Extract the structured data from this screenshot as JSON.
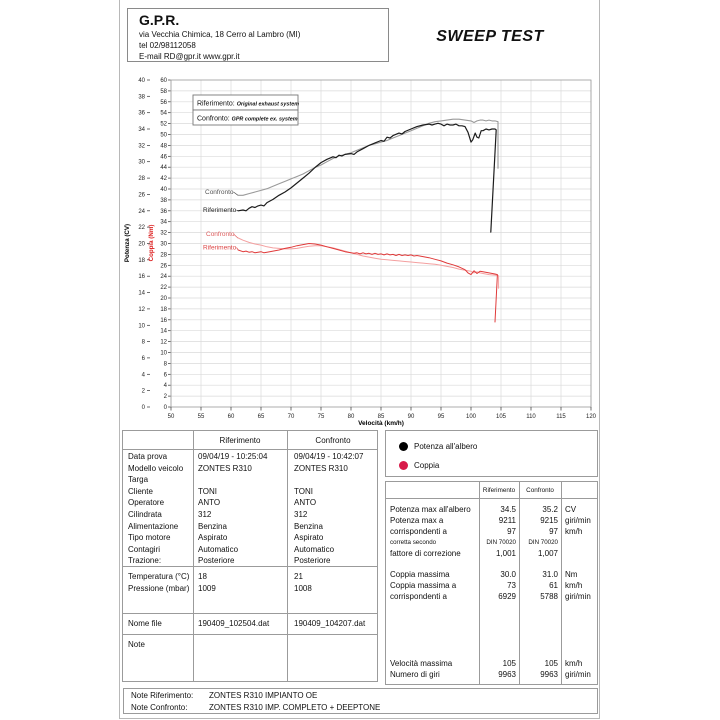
{
  "header": {
    "company": "G.P.R.",
    "address": "via Vecchia Chimica, 18 Cerro al Lambro (MI)",
    "phone": "tel 02/98112058",
    "email_line": "E-mail RD@gpr.it  www.gpr.it",
    "title": "SWEEP TEST"
  },
  "chart_data": {
    "type": "line",
    "x_axis": {
      "label": "Velocità (km/h)",
      "min": 50,
      "max": 120,
      "step": 5
    },
    "y_axis_power": {
      "label": "Potenza (CV)",
      "min": 0,
      "max": 40,
      "step": 2,
      "color": "#000000"
    },
    "y_axis_torque": {
      "label": "Coppia (Nm)",
      "min": 0,
      "max": 60,
      "step": 2,
      "color": "#dd2222"
    },
    "grid": "on",
    "box_legend": [
      {
        "prefix": "Riferimento:",
        "text": "Original exhaust system"
      },
      {
        "prefix": "Confronto:",
        "text": "GPR complete ex. system"
      }
    ],
    "curve_labels": [
      {
        "text": "Confronto",
        "color": "#555555",
        "x": 85,
        "y": 126,
        "line": [
          113.5,
          124,
          118,
          127.3
        ]
      },
      {
        "text": "Riferimento",
        "color": "#222222",
        "x": 83,
        "y": 144,
        "line": [
          116.5,
          142,
          118.2,
          142.9
        ]
      },
      {
        "text": "Confronto",
        "color": "#e06060",
        "x": 86,
        "y": 168,
        "line": [
          113.5,
          166,
          118,
          170.1
        ]
      },
      {
        "text": "Riferimento",
        "color": "#dd4444",
        "x": 83,
        "y": 181.5,
        "line": [
          116.5,
          179.5,
          118.2,
          182.1
        ]
      }
    ],
    "series": [
      {
        "id": "potenza-confronto",
        "name": "Potenza Confronto",
        "axis": "power",
        "color": "#9a9a9a",
        "width": 1.1,
        "points": [
          [
            61.2,
            25.9
          ],
          [
            62,
            25.9
          ],
          [
            63,
            26.1
          ],
          [
            64,
            26.3
          ],
          [
            65,
            26.5
          ],
          [
            66,
            26.7
          ],
          [
            67,
            27.0
          ],
          [
            68,
            27.3
          ],
          [
            69,
            27.6
          ],
          [
            70,
            27.9
          ],
          [
            71,
            28.2
          ],
          [
            72,
            28.5
          ],
          [
            73,
            28.9
          ],
          [
            74,
            29.3
          ],
          [
            75,
            29.6
          ],
          [
            76,
            30.0
          ],
          [
            77,
            30.4
          ],
          [
            78,
            30.7
          ],
          [
            79,
            30.9
          ],
          [
            80,
            31.1
          ],
          [
            81,
            31.4
          ],
          [
            82,
            31.7
          ],
          [
            83,
            32.0
          ],
          [
            84,
            32.2
          ],
          [
            85,
            32.4
          ],
          [
            86,
            32.6
          ],
          [
            87,
            32.9
          ],
          [
            88,
            33.2
          ],
          [
            89,
            33.5
          ],
          [
            90,
            33.8
          ],
          [
            91,
            34.1
          ],
          [
            92,
            34.4
          ],
          [
            93,
            34.7
          ],
          [
            94,
            34.9
          ],
          [
            95,
            35.0
          ],
          [
            96,
            35.1
          ],
          [
            97,
            35.2
          ],
          [
            98,
            35.2
          ],
          [
            99,
            35.1
          ],
          [
            100,
            35.0
          ],
          [
            100.5,
            34.8
          ],
          [
            101,
            35.0
          ],
          [
            101.5,
            35.1
          ],
          [
            102,
            35.1
          ],
          [
            102.5,
            35.0
          ],
          [
            103,
            35.1
          ],
          [
            103.5,
            35.0
          ],
          [
            104,
            35.0
          ],
          [
            104.5,
            34.9
          ],
          [
            104.5,
            29.2
          ]
        ]
      },
      {
        "id": "potenza-riferimento",
        "name": "Potenza Riferimento",
        "axis": "power",
        "color": "#1c1c1c",
        "width": 1.2,
        "points": [
          [
            61.2,
            24.0
          ],
          [
            62,
            24.1
          ],
          [
            62.5,
            24.0
          ],
          [
            63,
            24.3
          ],
          [
            63.5,
            24.5
          ],
          [
            64,
            24.4
          ],
          [
            64.5,
            24.6
          ],
          [
            65,
            24.7
          ],
          [
            65.5,
            24.6
          ],
          [
            66,
            25.0
          ],
          [
            67,
            25.4
          ],
          [
            68,
            25.9
          ],
          [
            69,
            26.3
          ],
          [
            70,
            26.8
          ],
          [
            71,
            27.4
          ],
          [
            72,
            28.0
          ],
          [
            73,
            28.6
          ],
          [
            74,
            29.3
          ],
          [
            75,
            29.9
          ],
          [
            76,
            30.3
          ],
          [
            77,
            30.6
          ],
          [
            77.5,
            30.5
          ],
          [
            78,
            30.8
          ],
          [
            78.5,
            30.7
          ],
          [
            79,
            30.9
          ],
          [
            80,
            31.0
          ],
          [
            80.5,
            30.9
          ],
          [
            81,
            31.2
          ],
          [
            82,
            31.6
          ],
          [
            83,
            32.0
          ],
          [
            84,
            32.3
          ],
          [
            85,
            32.6
          ],
          [
            85.5,
            32.5
          ],
          [
            86,
            33.0
          ],
          [
            86.5,
            32.9
          ],
          [
            87,
            33.2
          ],
          [
            88,
            33.5
          ],
          [
            88.5,
            33.4
          ],
          [
            89,
            33.7
          ],
          [
            90,
            34.0
          ],
          [
            91,
            34.3
          ],
          [
            92,
            34.5
          ],
          [
            93,
            34.6
          ],
          [
            93.5,
            34.5
          ],
          [
            94,
            34.6
          ],
          [
            94.5,
            34.7
          ],
          [
            95,
            34.6
          ],
          [
            95.5,
            34.4
          ],
          [
            96,
            34.6
          ],
          [
            96.5,
            34.5
          ],
          [
            97,
            34.5
          ],
          [
            97.5,
            34.6
          ],
          [
            98,
            34.4
          ],
          [
            98.5,
            34.4
          ],
          [
            99,
            34.3
          ],
          [
            99.5,
            33.6
          ],
          [
            100,
            32.4
          ],
          [
            100.3,
            32.7
          ],
          [
            100.7,
            33.5
          ],
          [
            101,
            33.0
          ],
          [
            101.3,
            32.9
          ],
          [
            101.7,
            33.8
          ],
          [
            102,
            33.8
          ],
          [
            102.5,
            34.0
          ],
          [
            103,
            33.9
          ],
          [
            103.5,
            34.0
          ],
          [
            104,
            34.0
          ],
          [
            104.2,
            33.9
          ],
          [
            103.3,
            21.4
          ]
        ]
      },
      {
        "id": "coppia-confronto",
        "name": "Coppia Confronto",
        "axis": "torque",
        "color": "#f4a0a0",
        "width": 1.0,
        "points": [
          [
            61.2,
            31.0
          ],
          [
            62,
            30.6
          ],
          [
            63,
            30.2
          ],
          [
            64,
            29.9
          ],
          [
            65,
            29.7
          ],
          [
            66,
            29.4
          ],
          [
            67,
            29.2
          ],
          [
            68,
            29.1
          ],
          [
            69,
            29.0
          ],
          [
            70,
            29.0
          ],
          [
            71,
            29.1
          ],
          [
            72,
            29.3
          ],
          [
            73,
            29.5
          ],
          [
            74,
            29.6
          ],
          [
            75,
            29.6
          ],
          [
            76,
            29.4
          ],
          [
            77,
            29.2
          ],
          [
            78,
            28.9
          ],
          [
            79,
            28.6
          ],
          [
            80,
            28.3
          ],
          [
            81,
            28.0
          ],
          [
            82,
            27.7
          ],
          [
            83,
            27.5
          ],
          [
            84,
            27.3
          ],
          [
            85,
            27.1
          ],
          [
            86,
            27.0
          ],
          [
            87,
            26.9
          ],
          [
            88,
            26.8
          ],
          [
            89,
            26.7
          ],
          [
            90,
            26.6
          ],
          [
            91,
            26.5
          ],
          [
            92,
            26.4
          ],
          [
            93,
            26.3
          ],
          [
            94,
            26.2
          ],
          [
            95,
            26.0
          ],
          [
            96,
            25.8
          ],
          [
            97,
            25.6
          ],
          [
            98,
            25.3
          ],
          [
            99,
            25.1
          ],
          [
            100,
            24.9
          ],
          [
            100.5,
            24.6
          ],
          [
            101,
            24.8
          ],
          [
            101.5,
            24.6
          ],
          [
            102,
            24.5
          ],
          [
            103,
            24.3
          ],
          [
            104,
            24.2
          ],
          [
            104.6,
            24.1
          ],
          [
            104.6,
            21.8
          ]
        ]
      },
      {
        "id": "coppia-riferimento",
        "name": "Coppia Riferimento",
        "axis": "torque",
        "color": "#e03a3a",
        "width": 1.0,
        "points": [
          [
            61.2,
            28.8
          ],
          [
            62,
            28.5
          ],
          [
            62.5,
            28.6
          ],
          [
            63,
            28.4
          ],
          [
            63.5,
            28.5
          ],
          [
            64,
            28.3
          ],
          [
            64.5,
            28.4
          ],
          [
            65,
            28.5
          ],
          [
            65.5,
            28.3
          ],
          [
            66,
            28.4
          ],
          [
            67,
            28.6
          ],
          [
            68,
            28.8
          ],
          [
            69,
            29.1
          ],
          [
            70,
            29.3
          ],
          [
            71,
            29.6
          ],
          [
            72,
            29.8
          ],
          [
            73,
            30.0
          ],
          [
            74,
            29.9
          ],
          [
            75,
            29.7
          ],
          [
            76,
            29.4
          ],
          [
            77,
            29.1
          ],
          [
            78,
            28.8
          ],
          [
            79,
            28.5
          ],
          [
            80,
            28.3
          ],
          [
            80.5,
            28.2
          ],
          [
            81,
            28.3
          ],
          [
            81.5,
            28.1
          ],
          [
            82,
            28.3
          ],
          [
            82.5,
            28.1
          ],
          [
            83,
            28.2
          ],
          [
            83.5,
            28.0
          ],
          [
            84,
            28.2
          ],
          [
            84.5,
            28.0
          ],
          [
            85,
            28.1
          ],
          [
            85.5,
            27.9
          ],
          [
            86,
            28.1
          ],
          [
            86.5,
            27.9
          ],
          [
            87,
            28.0
          ],
          [
            87.5,
            27.8
          ],
          [
            88,
            28.0
          ],
          [
            88.5,
            27.8
          ],
          [
            89,
            27.9
          ],
          [
            89.5,
            27.8
          ],
          [
            90,
            27.9
          ],
          [
            90.5,
            27.7
          ],
          [
            91,
            27.8
          ],
          [
            92,
            27.6
          ],
          [
            93,
            27.4
          ],
          [
            94,
            27.1
          ],
          [
            95,
            26.8
          ],
          [
            96,
            26.4
          ],
          [
            97,
            26.1
          ],
          [
            98,
            25.7
          ],
          [
            99,
            25.2
          ],
          [
            99.5,
            24.6
          ],
          [
            100,
            24.3
          ],
          [
            100.5,
            25.0
          ],
          [
            101,
            24.5
          ],
          [
            101.5,
            24.9
          ],
          [
            102,
            24.8
          ],
          [
            103,
            24.6
          ],
          [
            104,
            24.4
          ],
          [
            104.4,
            24.3
          ],
          [
            104.0,
            15.6
          ]
        ]
      }
    ]
  },
  "legend": {
    "items": [
      {
        "label": "Potenza all'albero",
        "color": "#000000",
        "icon": "power-dot-icon"
      },
      {
        "label": "Coppia",
        "color": "#d81b4a",
        "icon": "torque-dot-icon"
      }
    ]
  },
  "info_table": {
    "headers": [
      "",
      "Riferimento",
      "Confronto"
    ],
    "sections": [
      {
        "rows": [
          [
            "Data prova",
            "09/04/19 - 10:25:04",
            "09/04/19 - 10:42:07"
          ],
          [
            "Modello veicolo",
            "ZONTES R310",
            "ZONTES R310"
          ],
          [
            "Targa",
            "",
            ""
          ],
          [
            "Cliente",
            "TONI",
            "TONI"
          ],
          [
            "Operatore",
            "ANTO",
            "ANTO"
          ],
          [
            "Cilindrata",
            "312",
            "312"
          ],
          [
            "Alimentazione",
            "Benzina",
            "Benzina"
          ],
          [
            "Tipo motore",
            "Aspirato",
            "Aspirato"
          ],
          [
            "Contagiri",
            "Automatico",
            "Automatico"
          ],
          [
            "Trazione:",
            "Posteriore",
            "Posteriore"
          ]
        ]
      },
      {
        "rows": [
          [
            "Temperatura (°C)",
            "18",
            "21"
          ],
          [
            "Pressione (mbar)",
            "1009",
            "1008"
          ]
        ]
      },
      {
        "rows": [
          [
            "Nome file",
            "190409_102504.dat",
            "190409_104207.dat"
          ]
        ]
      },
      {
        "rows": [
          [
            "Note",
            "",
            ""
          ]
        ]
      }
    ]
  },
  "results_table": {
    "headers": [
      "",
      "Riferimento",
      "Confronto",
      ""
    ],
    "groups": [
      {
        "rows": [
          {
            "label": "Potenza max all'albero",
            "rif": "34.5",
            "conf": "35.2",
            "unit": "CV"
          },
          {
            "label": "Potenza max a",
            "rif": "9211",
            "conf": "9215",
            "unit": "giri/min"
          },
          {
            "label": "corrispondenti a",
            "rif": "97",
            "conf": "97",
            "unit": "km/h"
          },
          {
            "label": "corretta secondo",
            "rif": "DIN 70020",
            "conf": "DIN 70020",
            "unit": "",
            "small": true
          },
          {
            "label": "fattore di correzione",
            "rif": "1,001",
            "conf": "1,007",
            "unit": ""
          }
        ]
      },
      {
        "rows": [
          {
            "label": "Coppia massima",
            "rif": "30.0",
            "conf": "31.0",
            "unit": "Nm"
          },
          {
            "label": "Coppia massima a",
            "rif": "73",
            "conf": "61",
            "unit": "km/h"
          },
          {
            "label": "corrispondenti a",
            "rif": "6929",
            "conf": "5788",
            "unit": "giri/min"
          }
        ]
      },
      {
        "rows": [
          {
            "label": "Velocità massima",
            "rif": "105",
            "conf": "105",
            "unit": "km/h"
          },
          {
            "label": "Numero di giri",
            "rif": "9963",
            "conf": "9963",
            "unit": "giri/min"
          }
        ]
      }
    ]
  },
  "notes": {
    "rows": [
      {
        "label": "Note Riferimento:",
        "value": "ZONTES R310 IMPIANTO OE"
      },
      {
        "label": "Note Confronto:",
        "value": "ZONTES R310 IMP. COMPLETO + DEEPTONE"
      }
    ]
  }
}
